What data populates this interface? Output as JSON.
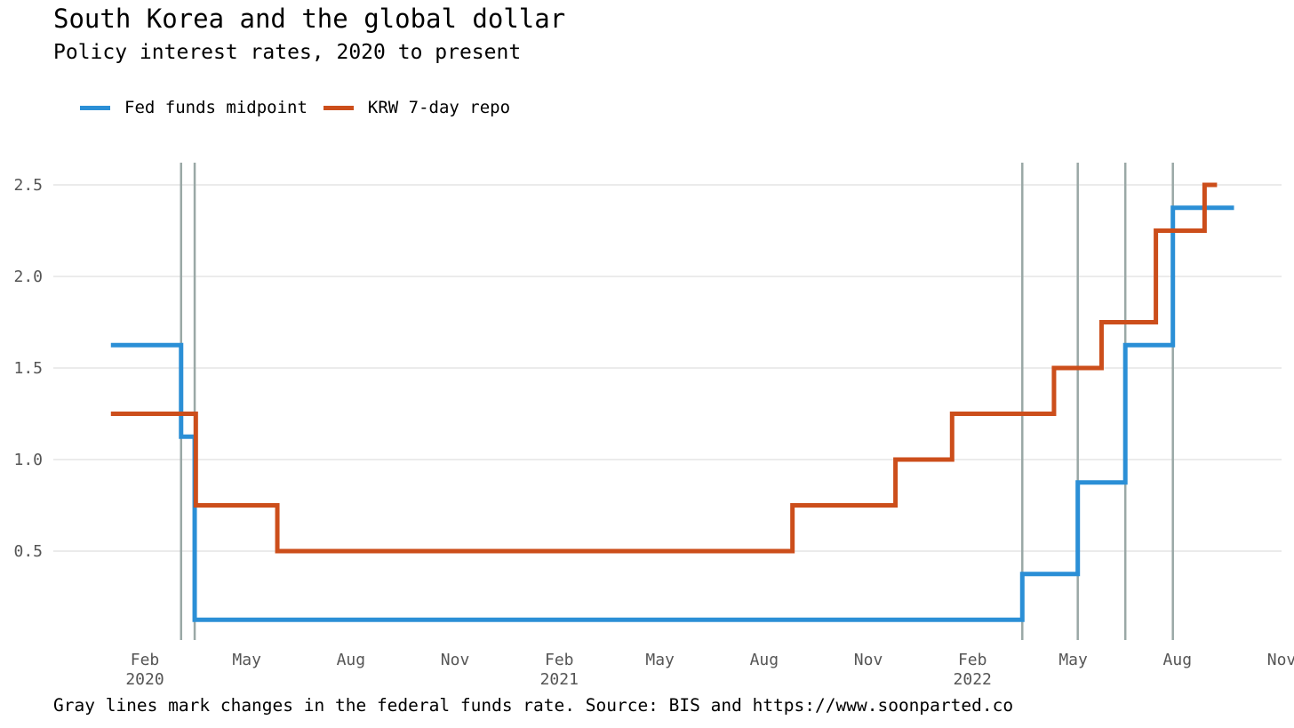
{
  "title": "South Korea and the global dollar",
  "subtitle": "Policy interest rates, 2020 to present",
  "caption": "Gray lines mark changes in the federal funds rate. Source: BIS and https://www.soonparted.co",
  "colors": {
    "fed": "#2b8fd6",
    "krw": "#cc4e1b",
    "vline": "#9aa8a6",
    "grid": "#ebebeb"
  },
  "chart_data": {
    "type": "line",
    "title": "South Korea and the global dollar",
    "subtitle": "Policy interest rates, 2020 to present",
    "xlabel": "",
    "ylabel": "",
    "ylim": [
      0,
      2.6
    ],
    "xlim": [
      "2019-12-01",
      "2022-11-01"
    ],
    "grid": "horizontal",
    "legend": "top-left",
    "y_ticks": [
      "2.5",
      "2.0",
      "1.5",
      "1.0",
      "0.5"
    ],
    "x_ticks": [
      {
        "date": "2020-02-01",
        "label": "Feb",
        "year": "2020"
      },
      {
        "date": "2020-05-01",
        "label": "May",
        "year": ""
      },
      {
        "date": "2020-08-01",
        "label": "Aug",
        "year": ""
      },
      {
        "date": "2020-11-01",
        "label": "Nov",
        "year": ""
      },
      {
        "date": "2021-02-01",
        "label": "Feb",
        "year": "2021"
      },
      {
        "date": "2021-05-01",
        "label": "May",
        "year": ""
      },
      {
        "date": "2021-08-01",
        "label": "Aug",
        "year": ""
      },
      {
        "date": "2021-11-01",
        "label": "Nov",
        "year": ""
      },
      {
        "date": "2022-02-01",
        "label": "Feb",
        "year": "2022"
      },
      {
        "date": "2022-05-01",
        "label": "May",
        "year": ""
      },
      {
        "date": "2022-08-01",
        "label": "Aug",
        "year": ""
      },
      {
        "date": "2022-11-01",
        "label": "Nov",
        "year": ""
      }
    ],
    "fed_change_dates": [
      "2020-03-04",
      "2020-03-16",
      "2022-03-17",
      "2022-05-05",
      "2022-06-16",
      "2022-07-28"
    ],
    "series": [
      {
        "name": "Fed funds midpoint",
        "steps": [
          {
            "date": "2020-01-02",
            "value": 1.625
          },
          {
            "date": "2020-03-04",
            "value": 1.125
          },
          {
            "date": "2020-03-16",
            "value": 0.125
          },
          {
            "date": "2022-03-17",
            "value": 0.375
          },
          {
            "date": "2022-05-05",
            "value": 0.875
          },
          {
            "date": "2022-06-16",
            "value": 1.625
          },
          {
            "date": "2022-07-28",
            "value": 2.375
          }
        ],
        "end": "2022-09-20"
      },
      {
        "name": "KRW 7-day repo",
        "steps": [
          {
            "date": "2020-01-02",
            "value": 1.25
          },
          {
            "date": "2020-03-17",
            "value": 0.75
          },
          {
            "date": "2020-05-28",
            "value": 0.5
          },
          {
            "date": "2021-08-26",
            "value": 0.75
          },
          {
            "date": "2021-11-25",
            "value": 1.0
          },
          {
            "date": "2022-01-14",
            "value": 1.25
          },
          {
            "date": "2022-04-14",
            "value": 1.5
          },
          {
            "date": "2022-05-26",
            "value": 1.75
          },
          {
            "date": "2022-07-13",
            "value": 2.25
          },
          {
            "date": "2022-08-25",
            "value": 2.5
          }
        ],
        "end": "2022-09-05"
      }
    ]
  }
}
